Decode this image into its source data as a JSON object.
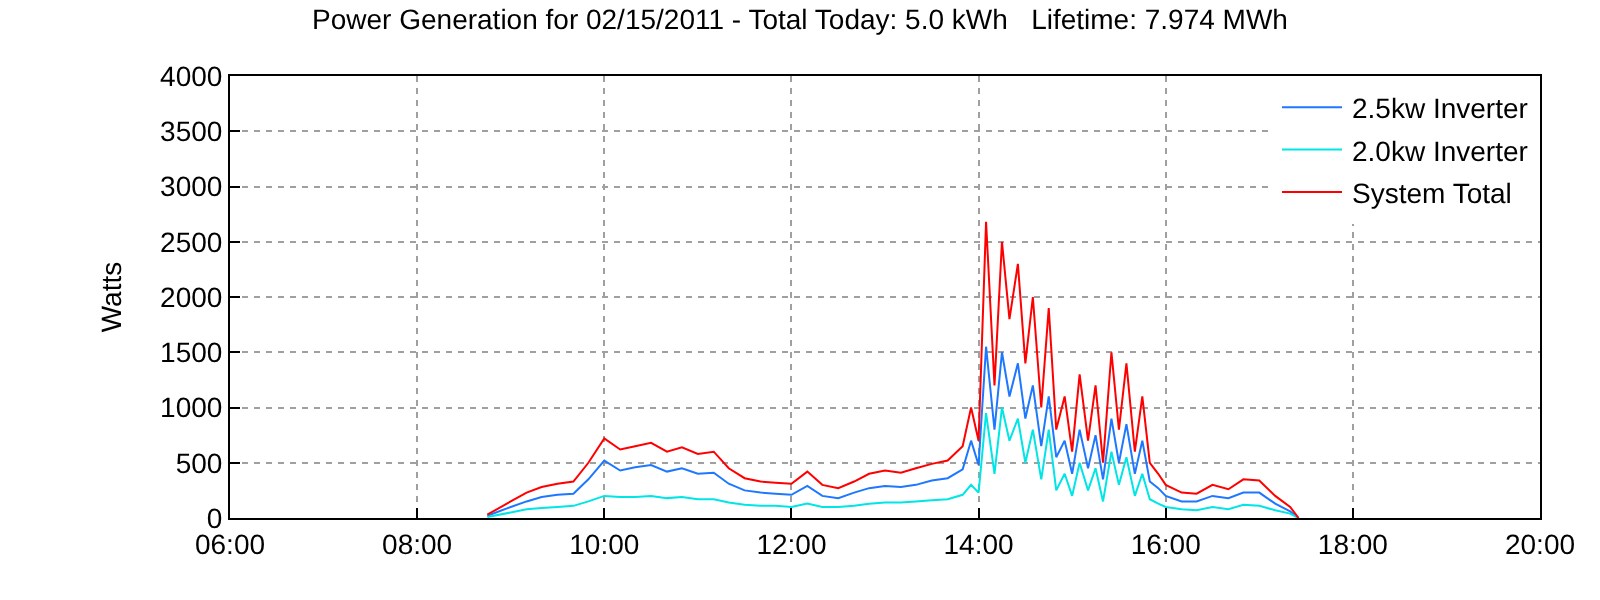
{
  "chart_data": {
    "type": "line",
    "title": "Power Generation for 02/15/2011 - Total Today: 5.0 kWh   Lifetime: 7.974 MWh",
    "ylabel": "Watts",
    "x": [
      8.75,
      9.0,
      9.17,
      9.33,
      9.5,
      9.67,
      9.83,
      10.0,
      10.17,
      10.33,
      10.5,
      10.67,
      10.83,
      11.0,
      11.17,
      11.33,
      11.5,
      11.67,
      11.83,
      12.0,
      12.17,
      12.33,
      12.5,
      12.67,
      12.83,
      13.0,
      13.17,
      13.33,
      13.5,
      13.67,
      13.83,
      13.92,
      14.0,
      14.08,
      14.17,
      14.25,
      14.33,
      14.42,
      14.5,
      14.58,
      14.67,
      14.75,
      14.83,
      14.92,
      15.0,
      15.08,
      15.17,
      15.25,
      15.33,
      15.42,
      15.5,
      15.58,
      15.67,
      15.75,
      15.83,
      15.92,
      16.0,
      16.17,
      16.33,
      16.5,
      16.67,
      16.83,
      17.0,
      17.17,
      17.33,
      17.42
    ],
    "series": [
      {
        "name": "2.5kw Inverter",
        "color": "#1e78ff",
        "values": [
          20,
          100,
          150,
          190,
          210,
          220,
          350,
          520,
          430,
          460,
          480,
          420,
          450,
          400,
          410,
          310,
          250,
          230,
          220,
          210,
          290,
          200,
          180,
          230,
          270,
          290,
          280,
          300,
          340,
          360,
          440,
          700,
          480,
          1550,
          800,
          1500,
          1100,
          1400,
          900,
          1200,
          650,
          1100,
          550,
          700,
          400,
          800,
          450,
          750,
          350,
          900,
          500,
          850,
          400,
          700,
          330,
          270,
          200,
          150,
          150,
          200,
          180,
          230,
          230,
          130,
          60,
          0
        ]
      },
      {
        "name": "2.0kw Inverter",
        "color": "#00e5e5",
        "values": [
          10,
          50,
          80,
          90,
          100,
          110,
          150,
          200,
          190,
          190,
          200,
          180,
          190,
          170,
          170,
          140,
          120,
          110,
          110,
          100,
          130,
          100,
          100,
          110,
          130,
          140,
          140,
          150,
          160,
          170,
          210,
          300,
          230,
          950,
          400,
          1000,
          700,
          900,
          500,
          800,
          350,
          800,
          250,
          400,
          200,
          500,
          250,
          450,
          150,
          600,
          300,
          550,
          200,
          400,
          170,
          130,
          100,
          80,
          70,
          100,
          80,
          120,
          110,
          70,
          40,
          0
        ]
      },
      {
        "name": "System Total",
        "color": "#ff0000",
        "values": [
          30,
          150,
          230,
          280,
          310,
          330,
          500,
          720,
          620,
          650,
          680,
          600,
          640,
          580,
          600,
          450,
          360,
          330,
          320,
          310,
          420,
          300,
          270,
          330,
          400,
          430,
          410,
          450,
          490,
          520,
          650,
          1000,
          700,
          2680,
          1200,
          2500,
          1800,
          2300,
          1400,
          2000,
          1000,
          1900,
          800,
          1100,
          600,
          1300,
          700,
          1200,
          500,
          1500,
          800,
          1400,
          600,
          1100,
          500,
          400,
          300,
          230,
          220,
          300,
          260,
          350,
          340,
          200,
          100,
          0
        ]
      }
    ],
    "xlim": [
      6,
      20
    ],
    "xticks": [
      {
        "value": 6,
        "label": "06:00"
      },
      {
        "value": 8,
        "label": "08:00"
      },
      {
        "value": 10,
        "label": "10:00"
      },
      {
        "value": 12,
        "label": "12:00"
      },
      {
        "value": 14,
        "label": "14:00"
      },
      {
        "value": 16,
        "label": "16:00"
      },
      {
        "value": 18,
        "label": "18:00"
      },
      {
        "value": 20,
        "label": "20:00"
      }
    ],
    "ylim": [
      0,
      4000
    ],
    "yticks": [
      0,
      500,
      1000,
      1500,
      2000,
      2500,
      3000,
      3500,
      4000
    ],
    "grid": true,
    "legend": "top right",
    "line_style": "solid",
    "marker": "none"
  }
}
